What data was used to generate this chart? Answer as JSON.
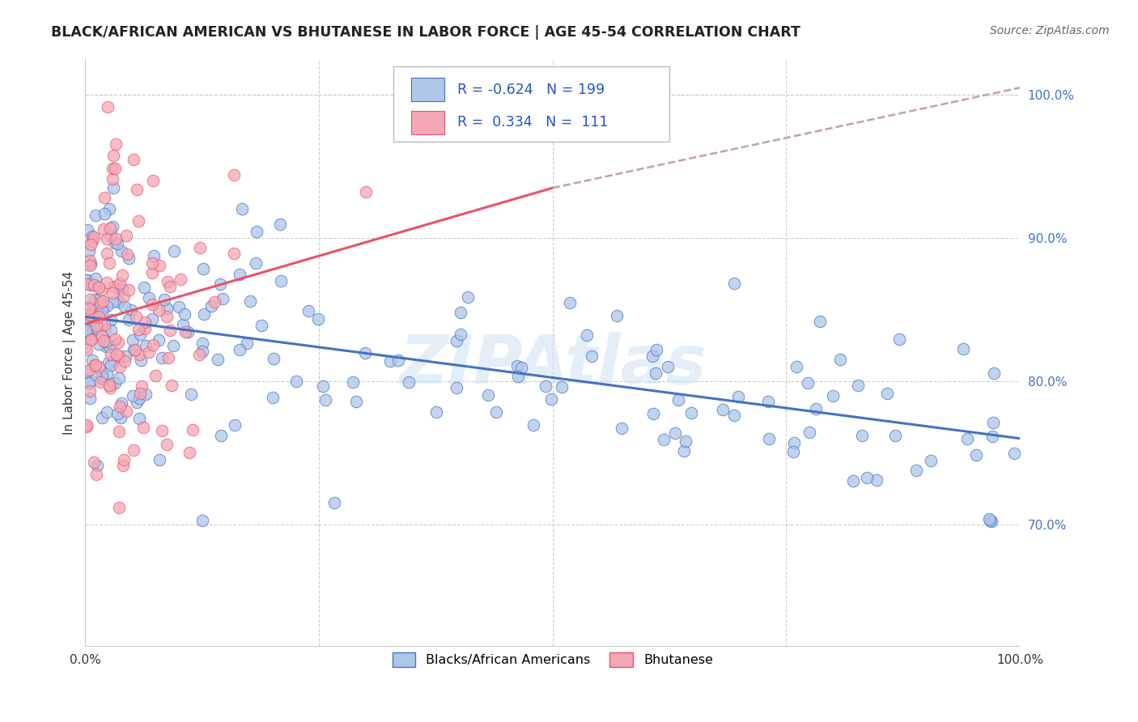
{
  "title": "BLACK/AFRICAN AMERICAN VS BHUTANESE IN LABOR FORCE | AGE 45-54 CORRELATION CHART",
  "source": "Source: ZipAtlas.com",
  "ylabel": "In Labor Force | Age 45-54",
  "x_min": 0.0,
  "x_max": 1.0,
  "y_min": 0.615,
  "y_max": 1.025,
  "y_tick_values_right": [
    0.7,
    0.8,
    0.9,
    1.0
  ],
  "blue_R": -0.624,
  "blue_N": 199,
  "pink_R": 0.334,
  "pink_N": 111,
  "blue_color": "#aec6e8",
  "pink_color": "#f4a7b5",
  "blue_line_color": "#4472c4",
  "pink_line_color": "#e8536a",
  "dashed_line_color": "#c0a0b0",
  "legend_label_blue": "Blacks/African Americans",
  "legend_label_pink": "Bhutanese",
  "watermark": "ZIPAtlas",
  "blue_line_start_y": 0.845,
  "blue_line_end_y": 0.76,
  "pink_line_start_y": 0.84,
  "pink_line_solid_end_x": 0.5,
  "pink_line_end_y": 0.935,
  "pink_line_dash_end_x": 1.0,
  "pink_line_dash_end_y": 1.005
}
